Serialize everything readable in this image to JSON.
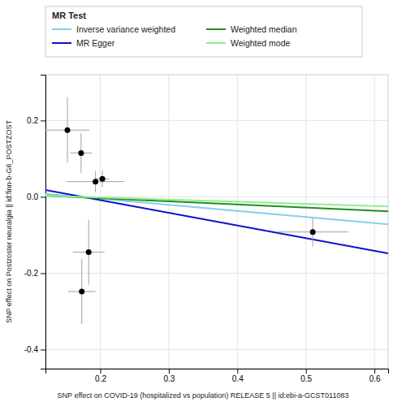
{
  "chart_data": {
    "type": "scatter",
    "xlabel": "SNP effect on COVID-19 (hospitalized vs population) RELEASE 5 || id:ebi-a-GCST011083",
    "ylabel": "SNP effect on Postzoster neuralgia || id:finn-b-G6_POSTZOST",
    "legend_title": "MR Test",
    "legend": "top",
    "grid": true,
    "xlim": [
      0.12,
      0.62
    ],
    "ylim": [
      -0.45,
      0.32
    ],
    "xticks": [
      0.2,
      0.3,
      0.4,
      0.5,
      0.6
    ],
    "yticks": [
      -0.4,
      -0.2,
      {
        "value": 0.0,
        "label": "0.0"
      },
      0.2
    ],
    "series": [
      {
        "type": "scatter",
        "color": "#000000",
        "marker": "circle",
        "x": [
          0.152,
          0.172,
          0.193,
          0.203,
          0.183,
          0.173,
          0.51
        ],
        "values": [
          0.175,
          0.115,
          0.04,
          0.047,
          -0.145,
          -0.248,
          -0.092
        ],
        "xerr": [
          0.032,
          0.016,
          0.042,
          0.01,
          0.023,
          0.02,
          0.052
        ],
        "yerr": [
          0.085,
          0.052,
          0.028,
          0.022,
          0.085,
          0.085,
          0.038
        ]
      },
      {
        "type": "line",
        "name": "Inverse variance weighted",
        "color": "#87CEEB",
        "x": [
          0.12,
          0.62
        ],
        "values": [
          0.008,
          -0.072
        ]
      },
      {
        "type": "line",
        "name": "MR Egger",
        "color": "#1010CC",
        "x": [
          0.12,
          0.62
        ],
        "values": [
          0.018,
          -0.148
        ]
      },
      {
        "type": "line",
        "name": "Weighted median",
        "color": "#228B22",
        "x": [
          0.12,
          0.62
        ],
        "values": [
          0.003,
          -0.038
        ]
      },
      {
        "type": "line",
        "name": "Weighted mode",
        "color": "#90EE90",
        "x": [
          0.12,
          0.62
        ],
        "values": [
          0.003,
          -0.025
        ]
      }
    ]
  }
}
